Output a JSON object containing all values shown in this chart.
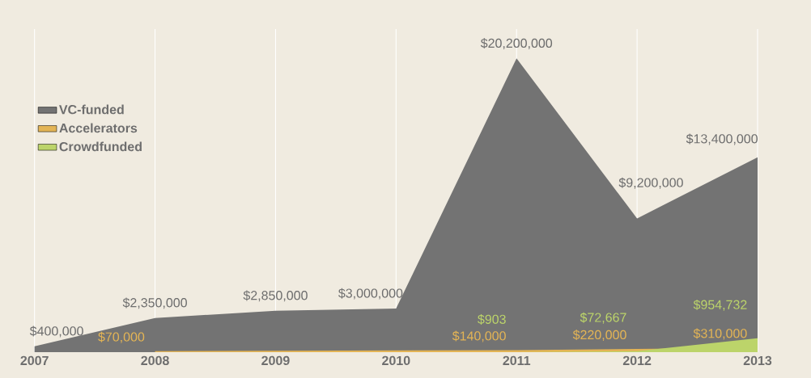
{
  "chart_data": {
    "type": "area",
    "categories": [
      "2007",
      "2008",
      "2009",
      "2010",
      "2011",
      "2012",
      "2013"
    ],
    "series": [
      {
        "name": "VC-funded",
        "color": "#737373",
        "values": [
          400000,
          2350000,
          2850000,
          3000000,
          20200000,
          9200000,
          13400000
        ],
        "value_labels": [
          "$400,000",
          "$2,350,000",
          "$2,850,000",
          "$3,000,000",
          "$20,200,000",
          "$9,200,000",
          "$13,400,000"
        ]
      },
      {
        "name": "Accelerators",
        "color": "#e3b455",
        "values": [
          null,
          70000,
          null,
          null,
          140000,
          220000,
          310000
        ],
        "value_labels": [
          null,
          "$70,000",
          null,
          null,
          "$140,000",
          "$220,000",
          "$310,000"
        ]
      },
      {
        "name": "Crowdfunded",
        "color": "#bcd46a",
        "values": [
          null,
          null,
          null,
          null,
          903,
          72667,
          954732
        ],
        "value_labels": [
          null,
          null,
          null,
          null,
          "$903",
          "$72,667",
          "$954,732"
        ]
      }
    ],
    "grid": "x",
    "legend": "top left"
  }
}
